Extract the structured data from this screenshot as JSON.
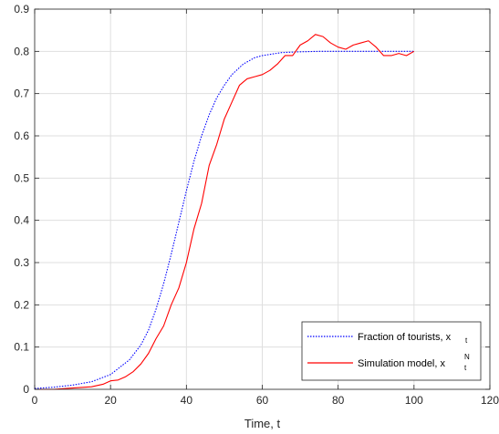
{
  "chart_data": {
    "type": "line",
    "title": "",
    "xlabel": "Time, t",
    "ylabel": "",
    "xlim": [
      0,
      120
    ],
    "ylim": [
      0,
      0.9
    ],
    "xticks": [
      "0",
      "20",
      "40",
      "60",
      "80",
      "100",
      "120"
    ],
    "yticks": [
      "0",
      "0.1",
      "0.2",
      "0.3",
      "0.4",
      "0.5",
      "0.6",
      "0.7",
      "0.8",
      "0.9"
    ],
    "grid": true,
    "legend_position": "bottom-right",
    "series": [
      {
        "name": "Fraction of tourists, x",
        "name_subscript": "t",
        "name_superscript": "",
        "color": "#0000ff",
        "style": "dotted",
        "x": [
          0,
          5,
          10,
          15,
          20,
          25,
          28,
          30,
          32,
          34,
          36,
          38,
          40,
          42,
          44,
          46,
          48,
          50,
          52,
          55,
          58,
          60,
          65,
          70,
          75,
          80,
          85,
          90,
          95,
          100
        ],
        "y": [
          0.002,
          0.005,
          0.01,
          0.018,
          0.035,
          0.07,
          0.105,
          0.14,
          0.19,
          0.25,
          0.32,
          0.395,
          0.47,
          0.54,
          0.6,
          0.65,
          0.69,
          0.72,
          0.745,
          0.77,
          0.785,
          0.79,
          0.797,
          0.799,
          0.8,
          0.8,
          0.8,
          0.8,
          0.8,
          0.8
        ]
      },
      {
        "name": "Simulation model, x",
        "name_subscript": "t",
        "name_superscript": "N",
        "color": "#ff0000",
        "style": "solid",
        "x": [
          0,
          5,
          10,
          15,
          18,
          20,
          22,
          24,
          26,
          28,
          30,
          32,
          34,
          36,
          38,
          40,
          42,
          44,
          46,
          48,
          50,
          52,
          54,
          56,
          58,
          60,
          62,
          64,
          66,
          68,
          70,
          72,
          74,
          76,
          78,
          80,
          82,
          84,
          86,
          88,
          90,
          92,
          94,
          96,
          98,
          100
        ],
        "y": [
          0.0,
          0.0,
          0.003,
          0.006,
          0.012,
          0.02,
          0.022,
          0.03,
          0.042,
          0.06,
          0.085,
          0.12,
          0.15,
          0.2,
          0.24,
          0.3,
          0.38,
          0.44,
          0.53,
          0.58,
          0.64,
          0.68,
          0.72,
          0.735,
          0.74,
          0.745,
          0.755,
          0.77,
          0.79,
          0.79,
          0.815,
          0.825,
          0.84,
          0.835,
          0.82,
          0.81,
          0.805,
          0.815,
          0.82,
          0.825,
          0.81,
          0.79,
          0.79,
          0.795,
          0.79,
          0.8
        ]
      }
    ]
  }
}
